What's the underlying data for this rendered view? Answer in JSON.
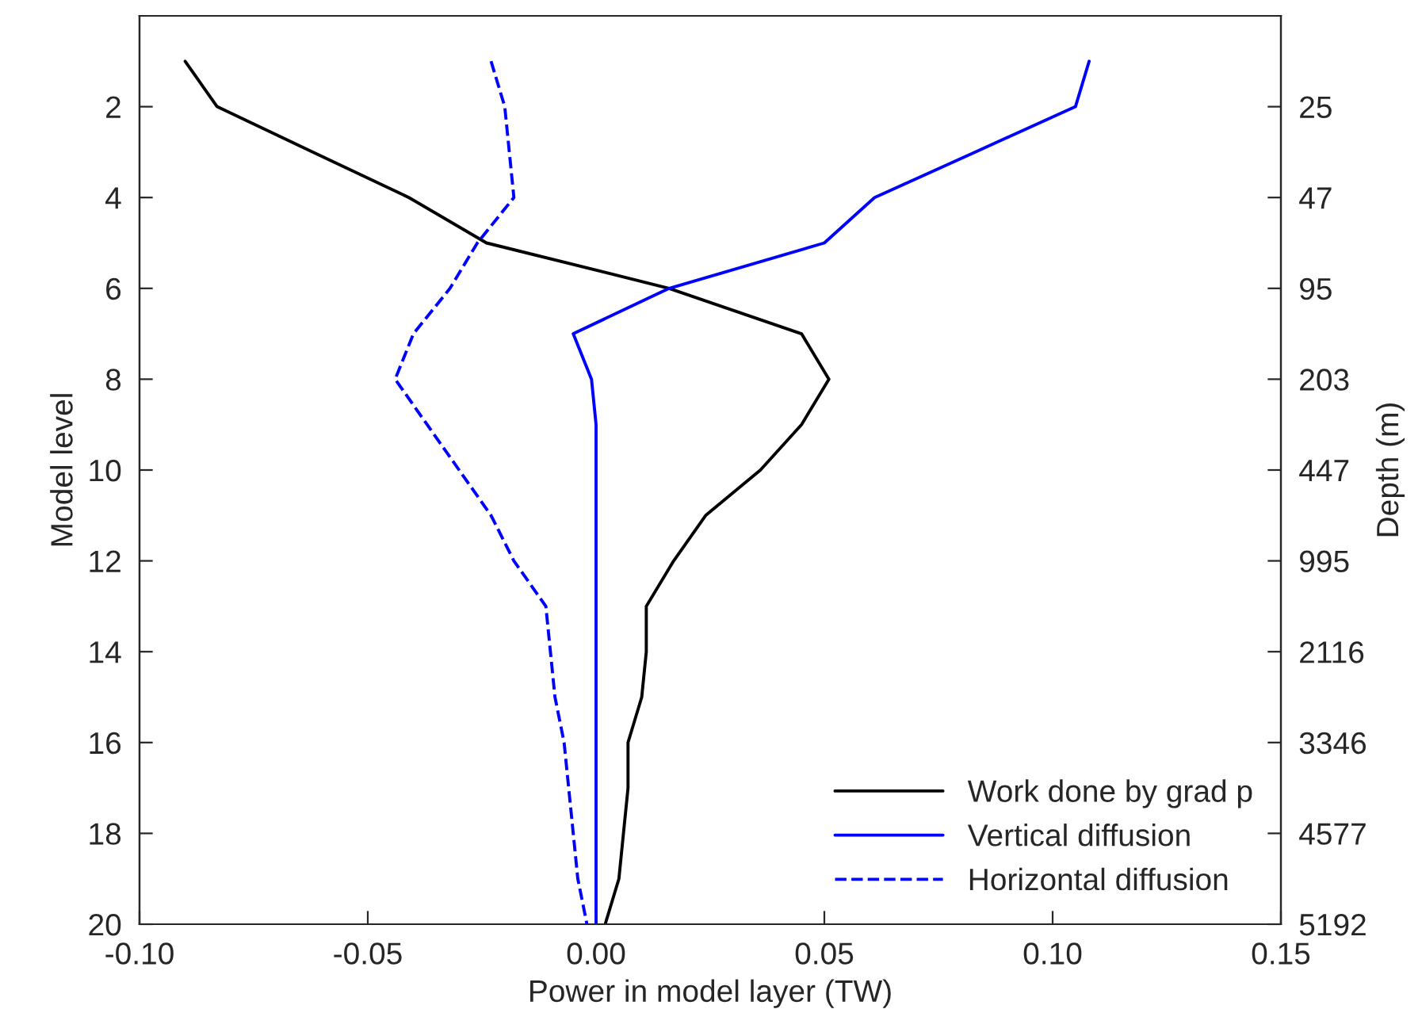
{
  "chart_data": {
    "type": "line",
    "orientation": "horizontal",
    "xlabel": "Power in model layer (TW)",
    "ylabel": "Model level",
    "y2label": "Depth (m)",
    "x": [
      1,
      2,
      3,
      4,
      5,
      6,
      7,
      8,
      9,
      10,
      11,
      12,
      13,
      14,
      15,
      16,
      17,
      18,
      19,
      20
    ],
    "series": [
      {
        "name": "Work done by grad p",
        "color": "#000000",
        "line_style": "solid",
        "values": [
          -0.09,
          -0.083,
          -0.062,
          -0.041,
          -0.024,
          0.016,
          0.045,
          0.051,
          0.045,
          0.036,
          0.024,
          0.017,
          0.011,
          0.011,
          0.01,
          0.007,
          0.007,
          0.006,
          0.005,
          0.002
        ]
      },
      {
        "name": "Vertical diffusion",
        "color": "#0000ff",
        "line_style": "solid",
        "values": [
          0.108,
          0.105,
          0.083,
          0.061,
          0.05,
          0.016,
          -0.005,
          -0.001,
          0.0,
          0.0,
          0.0,
          0.0,
          0.0,
          0.0,
          0.0,
          0.0,
          0.0,
          0.0,
          0.0,
          0.0
        ]
      },
      {
        "name": "Horizontal diffusion",
        "color": "#0000ff",
        "line_style": "dashed",
        "values": [
          -0.023,
          -0.02,
          -0.019,
          -0.018,
          -0.026,
          -0.032,
          -0.04,
          -0.044,
          -0.037,
          -0.03,
          -0.023,
          -0.018,
          -0.011,
          -0.01,
          -0.009,
          -0.007,
          -0.006,
          -0.005,
          -0.004,
          -0.002
        ]
      }
    ],
    "xlim": [
      -0.1,
      0.15
    ],
    "xticks": [
      {
        "value": -0.1,
        "label": "-0.10"
      },
      {
        "value": -0.05,
        "label": "-0.05"
      },
      {
        "value": 0.0,
        "label": "0.00"
      },
      {
        "value": 0.05,
        "label": "0.05"
      },
      {
        "value": 0.1,
        "label": "0.10"
      },
      {
        "value": 0.15,
        "label": "0.15"
      }
    ],
    "ylim": [
      20,
      0
    ],
    "yticks": [
      2,
      4,
      6,
      8,
      10,
      12,
      14,
      16,
      18,
      20
    ],
    "y2_categories": [
      null,
      "25",
      null,
      "47",
      null,
      "95",
      null,
      "203",
      null,
      "447",
      null,
      "995",
      null,
      "2116",
      null,
      "3346",
      null,
      "4577",
      null,
      "5192"
    ],
    "grid": false,
    "legend": "bottom right"
  }
}
